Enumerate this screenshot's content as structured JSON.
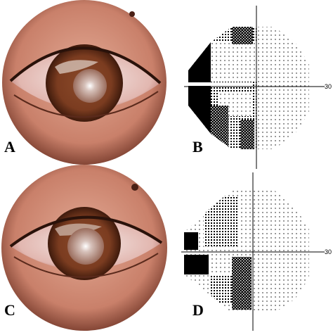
{
  "panels": [
    {
      "label": "A"
    },
    {
      "label": "B",
      "axis_label": "30"
    },
    {
      "label": "C"
    },
    {
      "label": "D",
      "axis_label": "30"
    }
  ]
}
